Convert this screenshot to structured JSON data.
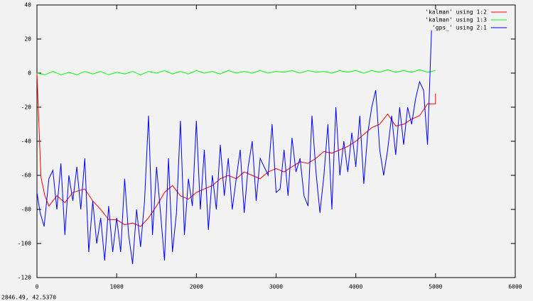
{
  "status": "2846.49, 42.5370",
  "chart_data": {
    "type": "line",
    "xlim": [
      0,
      6000
    ],
    "xticks": [
      0,
      1000,
      2000,
      3000,
      4000,
      5000,
      6000
    ],
    "ylim": [
      -120,
      40
    ],
    "yticks": [
      -120,
      -100,
      -80,
      -60,
      -40,
      -20,
      0,
      20,
      40
    ],
    "legend": "top right",
    "series": [
      {
        "name": "'kalman' using 1:2",
        "color": "#ff0000",
        "x": [
          0,
          50,
          100,
          150,
          250,
          350,
          450,
          600,
          700,
          800,
          900,
          1000,
          1100,
          1200,
          1300,
          1400,
          1500,
          1600,
          1700,
          1800,
          1900,
          2000,
          2100,
          2200,
          2300,
          2400,
          2500,
          2600,
          2700,
          2800,
          2900,
          3000,
          3100,
          3200,
          3300,
          3400,
          3500,
          3600,
          3700,
          3800,
          3900,
          4000,
          4100,
          4200,
          4300,
          4400,
          4500,
          4600,
          4700,
          4800,
          4900,
          5000,
          5000
        ],
        "values": [
          0,
          -61,
          -72,
          -78,
          -72,
          -76,
          -70,
          -68,
          -75,
          -80,
          -86,
          -86,
          -89,
          -88,
          -90,
          -85,
          -78,
          -70,
          -66,
          -72,
          -74,
          -70,
          -68,
          -66,
          -62,
          -60,
          -62,
          -58,
          -60,
          -62,
          -58,
          -56,
          -58,
          -55,
          -52,
          -53,
          -50,
          -46,
          -47,
          -45,
          -43,
          -40,
          -36,
          -32,
          -30,
          -24,
          -31,
          -30,
          -27,
          -25,
          -18,
          -18,
          -12
        ]
      },
      {
        "name": "'kalman' using 1:3",
        "color": "#00ff00",
        "x": [
          0,
          100,
          200,
          300,
          400,
          500,
          600,
          700,
          800,
          900,
          1000,
          1100,
          1200,
          1300,
          1400,
          1500,
          1600,
          1700,
          1800,
          1900,
          2000,
          2100,
          2200,
          2300,
          2400,
          2500,
          2600,
          2700,
          2800,
          2900,
          3000,
          3100,
          3200,
          3300,
          3400,
          3500,
          3600,
          3700,
          3800,
          3900,
          4000,
          4100,
          4200,
          4300,
          4400,
          4500,
          4600,
          4700,
          4800,
          4900,
          5000
        ],
        "values": [
          0,
          -1,
          1,
          -1,
          0.5,
          -1,
          1,
          -0.5,
          1,
          -1,
          0.5,
          -0.5,
          1,
          -1,
          1,
          0,
          1.5,
          -0.5,
          1,
          -0.5,
          1.5,
          0,
          1,
          -0.5,
          1.5,
          0,
          1,
          0,
          1.5,
          0,
          1,
          0.5,
          1.5,
          0,
          1.5,
          0.5,
          1,
          0,
          1.5,
          0.5,
          1.5,
          0,
          1.5,
          0.5,
          2,
          0.5,
          1.5,
          0.5,
          2,
          0.5,
          1.5
        ]
      },
      {
        "name": "'gps_' using 2:1",
        "color": "#0000ff",
        "x": [
          0,
          40,
          90,
          150,
          200,
          250,
          300,
          350,
          400,
          450,
          500,
          550,
          600,
          650,
          700,
          750,
          800,
          850,
          900,
          950,
          1000,
          1050,
          1100,
          1150,
          1200,
          1250,
          1300,
          1350,
          1400,
          1450,
          1500,
          1550,
          1600,
          1650,
          1700,
          1750,
          1800,
          1850,
          1900,
          1950,
          2000,
          2050,
          2100,
          2150,
          2200,
          2250,
          2300,
          2350,
          2400,
          2450,
          2500,
          2550,
          2600,
          2650,
          2700,
          2750,
          2800,
          2900,
          2950,
          3000,
          3050,
          3100,
          3150,
          3200,
          3250,
          3300,
          3350,
          3400,
          3450,
          3500,
          3550,
          3600,
          3650,
          3700,
          3750,
          3800,
          3850,
          3900,
          3950,
          4000,
          4050,
          4100,
          4150,
          4200,
          4250,
          4300,
          4350,
          4400,
          4450,
          4500,
          4550,
          4600,
          4650,
          4700,
          4750,
          4800,
          4850,
          4900,
          4950
        ],
        "values": [
          -70,
          -82,
          -90,
          -62,
          -57,
          -80,
          -53,
          -95,
          -60,
          -75,
          -55,
          -80,
          -50,
          -105,
          -75,
          -100,
          -85,
          -110,
          -78,
          -105,
          -85,
          -105,
          -62,
          -95,
          -112,
          -80,
          -102,
          -75,
          -25,
          -95,
          -55,
          -82,
          -110,
          -50,
          -105,
          -82,
          -28,
          -95,
          -62,
          -78,
          -28,
          -80,
          -45,
          -92,
          -60,
          -80,
          -42,
          -72,
          -50,
          -80,
          -62,
          -45,
          -82,
          -55,
          -40,
          -75,
          -50,
          -60,
          -30,
          -70,
          -68,
          -45,
          -72,
          -38,
          -58,
          -50,
          -72,
          -78,
          -25,
          -58,
          -82,
          -60,
          -30,
          -80,
          -20,
          -60,
          -40,
          -58,
          -35,
          -55,
          -25,
          -65,
          -35,
          -20,
          -10,
          -45,
          -60,
          -45,
          -25,
          -48,
          -20,
          -42,
          -20,
          -30,
          -15,
          -5,
          -10,
          -42,
          25
        ]
      }
    ]
  }
}
